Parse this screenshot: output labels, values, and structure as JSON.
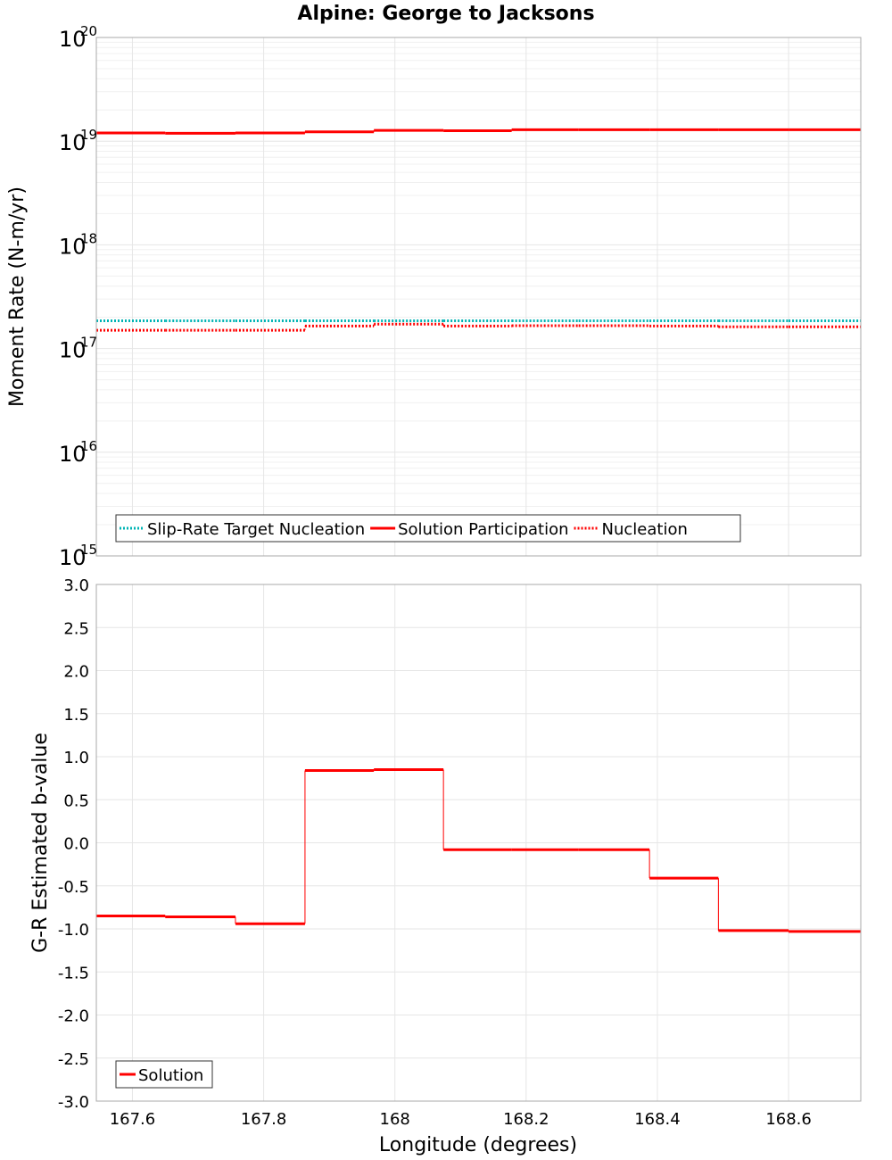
{
  "chart_data": {
    "title": "Alpine: George to Jacksons",
    "xlabel": "Longitude (degrees)",
    "xlim": [
      167.545,
      168.71
    ],
    "x_ticks": [
      {
        "value": 167.6,
        "label": "167.6"
      },
      {
        "value": 167.8,
        "label": "167.8"
      },
      {
        "value": 168.0,
        "label": "168"
      },
      {
        "value": 168.2,
        "label": "168.2"
      },
      {
        "value": 168.4,
        "label": "168.4"
      },
      {
        "value": 168.6,
        "label": "168.6"
      }
    ],
    "panels": [
      {
        "type": "line",
        "ylabel": "Moment Rate (N-m/yr)",
        "yscale": "log",
        "ylim": [
          1000000000000000.0,
          1e+20
        ],
        "grid": true,
        "y_ticks": [
          {
            "value": 1000000000000000.0,
            "base": "10",
            "exp": "15"
          },
          {
            "value": 1e+16,
            "base": "10",
            "exp": "16"
          },
          {
            "value": 1e+17,
            "base": "10",
            "exp": "17"
          },
          {
            "value": 1e+18,
            "base": "10",
            "exp": "18"
          },
          {
            "value": 1e+19,
            "base": "10",
            "exp": "19"
          },
          {
            "value": 1e+20,
            "base": "10",
            "exp": "20"
          }
        ],
        "legend_position": "bottom-left",
        "series": [
          {
            "name": "Slip-Rate Target Nucleation",
            "color": "#00b4b4",
            "style": "dotted",
            "segments": [
              {
                "x": [
                  167.545,
                  167.65
                ],
                "y": 1.85e+17
              },
              {
                "x": [
                  167.65,
                  167.757
                ],
                "y": 1.85e+17
              },
              {
                "x": [
                  167.757,
                  167.863
                ],
                "y": 1.85e+17
              },
              {
                "x": [
                  167.863,
                  167.968
                ],
                "y": 1.85e+17
              },
              {
                "x": [
                  167.968,
                  168.074
                ],
                "y": 1.85e+17
              },
              {
                "x": [
                  168.074,
                  168.178
                ],
                "y": 1.85e+17
              },
              {
                "x": [
                  168.178,
                  168.28
                ],
                "y": 1.85e+17
              },
              {
                "x": [
                  168.28,
                  168.388
                ],
                "y": 1.85e+17
              },
              {
                "x": [
                  168.388,
                  168.493
                ],
                "y": 1.85e+17
              },
              {
                "x": [
                  168.493,
                  168.6
                ],
                "y": 1.85e+17
              },
              {
                "x": [
                  168.6,
                  168.71
                ],
                "y": 1.85e+17
              }
            ]
          },
          {
            "name": "Solution Participation",
            "color": "#ff0000",
            "style": "solid",
            "segments": [
              {
                "x": [
                  167.545,
                  167.65
                ],
                "y": 1.2e+19
              },
              {
                "x": [
                  167.65,
                  167.757
                ],
                "y": 1.19e+19
              },
              {
                "x": [
                  167.757,
                  167.863
                ],
                "y": 1.2e+19
              },
              {
                "x": [
                  167.863,
                  167.968
                ],
                "y": 1.23e+19
              },
              {
                "x": [
                  167.968,
                  168.074
                ],
                "y": 1.27e+19
              },
              {
                "x": [
                  168.074,
                  168.178
                ],
                "y": 1.26e+19
              },
              {
                "x": [
                  168.178,
                  168.28
                ],
                "y": 1.29e+19
              },
              {
                "x": [
                  168.28,
                  168.388
                ],
                "y": 1.29e+19
              },
              {
                "x": [
                  168.388,
                  168.493
                ],
                "y": 1.29e+19
              },
              {
                "x": [
                  168.493,
                  168.6
                ],
                "y": 1.29e+19
              },
              {
                "x": [
                  168.6,
                  168.71
                ],
                "y": 1.29e+19
              }
            ]
          },
          {
            "name": "Nucleation",
            "color": "#ff0000",
            "style": "dotted",
            "segments": [
              {
                "x": [
                  167.545,
                  167.65
                ],
                "y": 1.5e+17
              },
              {
                "x": [
                  167.65,
                  167.757
                ],
                "y": 1.5e+17
              },
              {
                "x": [
                  167.757,
                  167.863
                ],
                "y": 1.5e+17
              },
              {
                "x": [
                  167.863,
                  167.968
                ],
                "y": 1.65e+17
              },
              {
                "x": [
                  167.968,
                  168.074
                ],
                "y": 1.72e+17
              },
              {
                "x": [
                  168.074,
                  168.178
                ],
                "y": 1.65e+17
              },
              {
                "x": [
                  168.178,
                  168.28
                ],
                "y": 1.66e+17
              },
              {
                "x": [
                  168.28,
                  168.388
                ],
                "y": 1.66e+17
              },
              {
                "x": [
                  168.388,
                  168.493
                ],
                "y": 1.65e+17
              },
              {
                "x": [
                  168.493,
                  168.6
                ],
                "y": 1.62e+17
              },
              {
                "x": [
                  168.6,
                  168.71
                ],
                "y": 1.62e+17
              }
            ]
          }
        ]
      },
      {
        "type": "line",
        "ylabel": "G-R Estimated b-value",
        "yscale": "linear",
        "ylim": [
          -3.0,
          3.0
        ],
        "grid": true,
        "y_ticks": [
          {
            "value": 3.0,
            "label": "3.0"
          },
          {
            "value": 2.5,
            "label": "2.5"
          },
          {
            "value": 2.0,
            "label": "2.0"
          },
          {
            "value": 1.5,
            "label": "1.5"
          },
          {
            "value": 1.0,
            "label": "1.0"
          },
          {
            "value": 0.5,
            "label": "0.5"
          },
          {
            "value": 0.0,
            "label": "0.0"
          },
          {
            "value": -0.5,
            "label": "-0.5"
          },
          {
            "value": -1.0,
            "label": "-1.0"
          },
          {
            "value": -1.5,
            "label": "-1.5"
          },
          {
            "value": -2.0,
            "label": "-2.0"
          },
          {
            "value": -2.5,
            "label": "-2.5"
          },
          {
            "value": -3.0,
            "label": "-3.0"
          }
        ],
        "legend_position": "bottom-left",
        "series": [
          {
            "name": "Solution",
            "color": "#ff0000",
            "style": "solid",
            "segments": [
              {
                "x": [
                  167.545,
                  167.65
                ],
                "y": -0.85
              },
              {
                "x": [
                  167.65,
                  167.757
                ],
                "y": -0.86
              },
              {
                "x": [
                  167.757,
                  167.863
                ],
                "y": -0.94
              },
              {
                "x": [
                  167.863,
                  167.968
                ],
                "y": 0.84
              },
              {
                "x": [
                  167.968,
                  168.074
                ],
                "y": 0.85
              },
              {
                "x": [
                  168.074,
                  168.178
                ],
                "y": -0.08
              },
              {
                "x": [
                  168.178,
                  168.28
                ],
                "y": -0.08
              },
              {
                "x": [
                  168.28,
                  168.388
                ],
                "y": -0.08
              },
              {
                "x": [
                  168.388,
                  168.493
                ],
                "y": -0.41
              },
              {
                "x": [
                  168.493,
                  168.6
                ],
                "y": -1.02
              },
              {
                "x": [
                  168.6,
                  168.71
                ],
                "y": -1.03
              }
            ]
          }
        ]
      }
    ]
  }
}
